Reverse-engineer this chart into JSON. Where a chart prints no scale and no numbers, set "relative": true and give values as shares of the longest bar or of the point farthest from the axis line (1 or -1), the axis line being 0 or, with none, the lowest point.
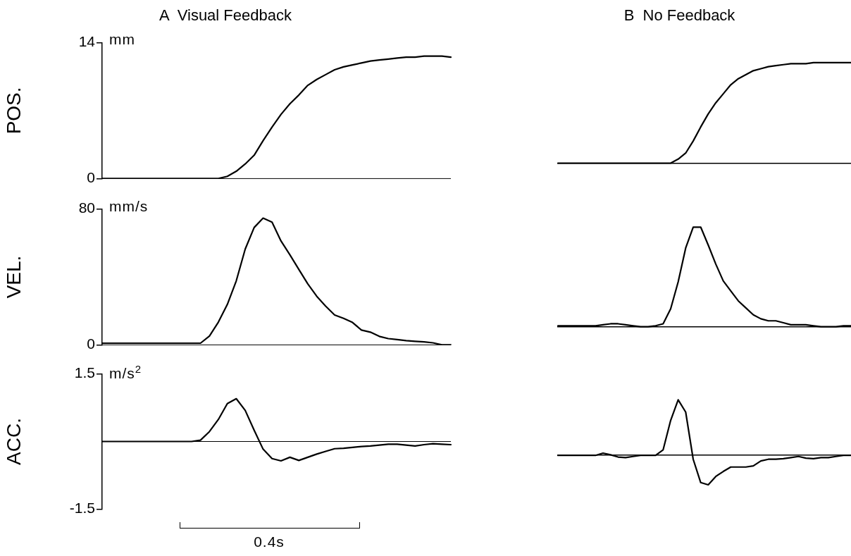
{
  "chart_data": [
    {
      "type": "line",
      "title": "A  Visual Feedback",
      "ylabel": "POS.",
      "annotations": [
        "mm"
      ],
      "color": "#000000",
      "marker": "none",
      "ylim": [
        0,
        14
      ],
      "yticks": [
        0,
        14
      ],
      "tick_labels": "y",
      "ref_lines": [
        {
          "axis": "y",
          "value": 0
        }
      ],
      "categories": [
        null,
        null,
        null,
        null,
        null,
        null,
        null,
        null,
        null,
        null,
        null,
        null,
        null,
        null,
        null,
        null,
        null,
        null,
        null,
        null,
        null,
        null,
        null,
        null,
        null,
        null,
        null,
        null,
        null,
        null,
        null,
        null,
        null,
        null,
        null,
        null,
        null,
        null,
        null,
        null
      ],
      "values": [
        0,
        0,
        0,
        0,
        0,
        0,
        0,
        0,
        0,
        0,
        0,
        0,
        0,
        0,
        0.23,
        0.75,
        1.5,
        2.4,
        3.9,
        5.3,
        6.6,
        7.7,
        8.6,
        9.6,
        10.2,
        10.7,
        11.2,
        11.5,
        11.7,
        11.9,
        12.1,
        12.2,
        12.3,
        12.4,
        12.5,
        12.5,
        12.6,
        12.6,
        12.6,
        12.5
      ]
    },
    {
      "type": "line",
      "title": "B  No Feedback",
      "color": "#000000",
      "marker": "none",
      "relative": true,
      "tick_labels": false,
      "categories": [
        null,
        null,
        null,
        null,
        null,
        null,
        null,
        null,
        null,
        null,
        null,
        null,
        null,
        null,
        null,
        null,
        null,
        null,
        null,
        null,
        null,
        null,
        null,
        null,
        null,
        null,
        null,
        null,
        null,
        null,
        null,
        null,
        null,
        null,
        null,
        null,
        null,
        null,
        null,
        null
      ],
      "values": [
        0,
        0,
        0,
        0,
        0,
        0,
        0,
        0,
        0,
        0,
        0,
        0,
        0,
        0,
        0,
        0,
        0.04,
        0.1,
        0.22,
        0.36,
        0.49,
        0.6,
        0.69,
        0.78,
        0.84,
        0.88,
        0.92,
        0.94,
        0.96,
        0.97,
        0.98,
        0.99,
        0.99,
        0.99,
        1,
        1,
        1,
        1,
        1,
        1
      ]
    },
    {
      "type": "line",
      "ylabel": "VEL.",
      "annotations": [
        "mm/s"
      ],
      "color": "#000000",
      "marker": "none",
      "ylim": [
        0,
        80
      ],
      "yticks": [
        0,
        80
      ],
      "tick_labels": "y",
      "ref_lines": [
        {
          "axis": "y",
          "value": 0
        }
      ],
      "categories": [
        null,
        null,
        null,
        null,
        null,
        null,
        null,
        null,
        null,
        null,
        null,
        null,
        null,
        null,
        null,
        null,
        null,
        null,
        null,
        null,
        null,
        null,
        null,
        null,
        null,
        null,
        null,
        null,
        null,
        null,
        null,
        null,
        null,
        null,
        null,
        null,
        null,
        null,
        null,
        null
      ],
      "values": [
        1,
        1,
        1,
        1,
        1,
        1,
        1,
        1,
        1,
        1,
        1,
        1,
        5.2,
        13.4,
        23.8,
        37.7,
        56.4,
        69.1,
        74.6,
        72.3,
        61.2,
        53.0,
        44.4,
        35.9,
        28.6,
        22.8,
        17.6,
        15.6,
        13.2,
        8.7,
        7.5,
        5.0,
        3.7,
        3.1,
        2.5,
        2.1,
        1.8,
        1.2,
        0,
        0
      ]
    },
    {
      "type": "line",
      "color": "#000000",
      "marker": "none",
      "relative": true,
      "tick_labels": false,
      "categories": [
        null,
        null,
        null,
        null,
        null,
        null,
        null,
        null,
        null,
        null,
        null,
        null,
        null,
        null,
        null,
        null,
        null,
        null,
        null,
        null,
        null,
        null,
        null,
        null,
        null,
        null,
        null,
        null,
        null,
        null,
        null,
        null,
        null,
        null,
        null,
        null,
        null,
        null,
        null,
        null
      ],
      "values": [
        0.01,
        0.01,
        0.01,
        0.01,
        0.01,
        0.01,
        0.02,
        0.03,
        0.03,
        0.02,
        0.01,
        0,
        0,
        0.01,
        0.03,
        0.18,
        0.45,
        0.79,
        1,
        1,
        0.82,
        0.63,
        0.46,
        0.36,
        0.26,
        0.19,
        0.12,
        0.08,
        0.06,
        0.06,
        0.04,
        0.02,
        0.02,
        0.02,
        0.01,
        0,
        0,
        0,
        0.01,
        0.01
      ]
    },
    {
      "type": "line",
      "ylabel": "ACC.",
      "annotations": [
        "m/s$^{2}$",
        "0.4s"
      ],
      "color": "#000000",
      "marker": "none",
      "ylim": [
        -1.5,
        1.5
      ],
      "yticks": [
        -1.5,
        1.5
      ],
      "tick_labels": "y",
      "ref_lines": [
        {
          "axis": "y",
          "value": 0
        }
      ],
      "categories": [
        null,
        null,
        null,
        null,
        null,
        null,
        null,
        null,
        null,
        null,
        null,
        null,
        null,
        null,
        null,
        null,
        null,
        null,
        null,
        null,
        null,
        null,
        null,
        null,
        null,
        null,
        null,
        null,
        null,
        null,
        null,
        null,
        null,
        null,
        null,
        null,
        null,
        null,
        null,
        null
      ],
      "values": [
        0,
        0,
        0,
        0,
        0,
        0,
        0,
        0,
        0,
        0,
        0,
        0.03,
        0.22,
        0.49,
        0.84,
        0.95,
        0.69,
        0.25,
        -0.17,
        -0.38,
        -0.43,
        -0.35,
        -0.42,
        -0.35,
        -0.28,
        -0.22,
        -0.16,
        -0.15,
        -0.13,
        -0.11,
        -0.1,
        -0.08,
        -0.06,
        -0.06,
        -0.08,
        -0.1,
        -0.07,
        -0.05,
        -0.06,
        -0.07
      ]
    },
    {
      "type": "line",
      "color": "#000000",
      "marker": "none",
      "relative": true,
      "tick_labels": false,
      "categories": [
        null,
        null,
        null,
        null,
        null,
        null,
        null,
        null,
        null,
        null,
        null,
        null,
        null,
        null,
        null,
        null,
        null,
        null,
        null,
        null,
        null,
        null,
        null,
        null,
        null,
        null,
        null,
        null,
        null,
        null,
        null,
        null,
        null,
        null,
        null,
        null,
        null,
        null,
        null,
        null
      ],
      "values": [
        0,
        0,
        0,
        0,
        0,
        0,
        0.04,
        0.01,
        -0.03,
        -0.04,
        -0.02,
        0,
        0,
        0,
        0.1,
        0.63,
        1,
        0.78,
        -0.07,
        -0.49,
        -0.53,
        -0.38,
        -0.29,
        -0.21,
        -0.21,
        -0.21,
        -0.19,
        -0.1,
        -0.07,
        -0.07,
        -0.06,
        -0.04,
        -0.02,
        -0.05,
        -0.06,
        -0.04,
        -0.04,
        -0.02,
        0,
        0
      ]
    }
  ]
}
